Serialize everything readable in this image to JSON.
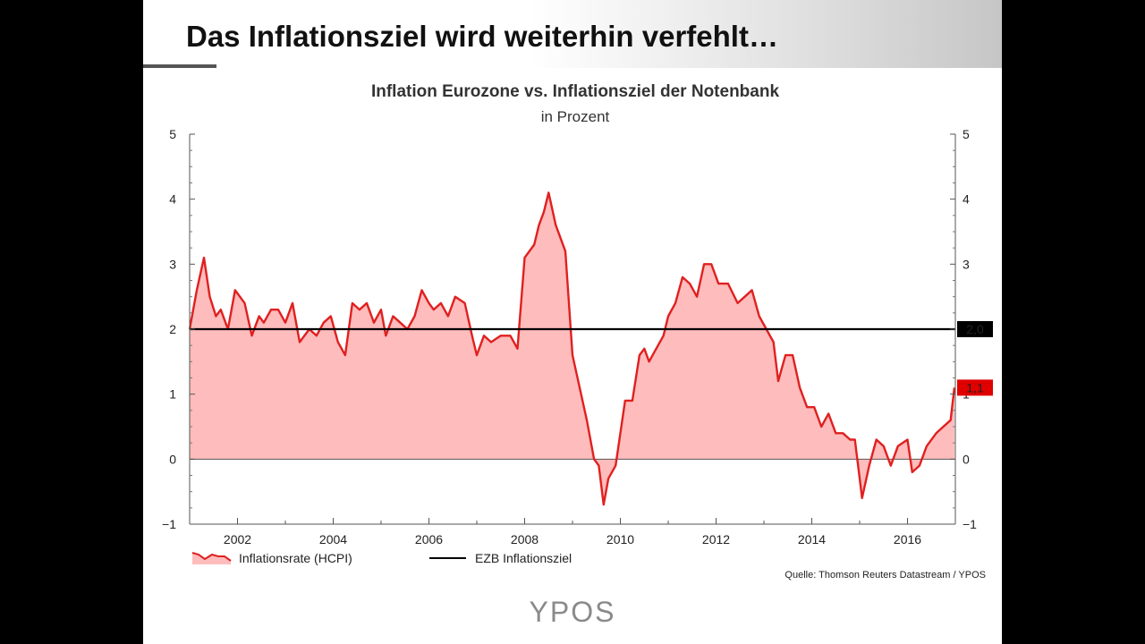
{
  "slide": {
    "title": "Das Inflationsziel wird weiterhin verfehlt…",
    "source": "Quelle: Thomson Reuters Datastream / YPOS",
    "logo": "YPOS"
  },
  "colors": {
    "line": "#e02020",
    "fill": "#ffbcbc",
    "target": "#000000",
    "badge_target": "#000000",
    "badge_current": "#e00000"
  },
  "chart_data": {
    "type": "area",
    "title": "Inflation Eurozone vs. Inflationsziel der Notenbank",
    "subtitle": "in Prozent",
    "x_ticks": [
      "2002",
      "2004",
      "2006",
      "2008",
      "2010",
      "2012",
      "2014",
      "2016"
    ],
    "y_ticks_left": [
      "5",
      "4",
      "3",
      "2",
      "1",
      "0",
      "−1"
    ],
    "y_ticks_right": [
      "5",
      "4",
      "3",
      "2",
      "1",
      "0",
      "−1"
    ],
    "xlim": [
      2001.0,
      2017.0
    ],
    "ylim": [
      -1,
      5
    ],
    "grid": false,
    "legend_position": "bottom-left",
    "series": [
      {
        "name": "Inflationsrate (HCPI)",
        "x": [
          2001.0,
          2001.15,
          2001.3,
          2001.42,
          2001.55,
          2001.65,
          2001.8,
          2001.95,
          2002.05,
          2002.15,
          2002.3,
          2002.45,
          2002.55,
          2002.7,
          2002.85,
          2003.0,
          2003.15,
          2003.3,
          2003.5,
          2003.65,
          2003.8,
          2003.95,
          2004.1,
          2004.25,
          2004.4,
          2004.55,
          2004.7,
          2004.85,
          2005.0,
          2005.1,
          2005.25,
          2005.4,
          2005.55,
          2005.7,
          2005.85,
          2006.0,
          2006.1,
          2006.25,
          2006.4,
          2006.55,
          2006.75,
          2006.9,
          2007.0,
          2007.15,
          2007.3,
          2007.5,
          2007.7,
          2007.85,
          2008.0,
          2008.2,
          2008.3,
          2008.4,
          2008.5,
          2008.65,
          2008.85,
          2009.0,
          2009.15,
          2009.3,
          2009.45,
          2009.55,
          2009.65,
          2009.75,
          2009.9,
          2010.1,
          2010.25,
          2010.4,
          2010.5,
          2010.6,
          2010.75,
          2010.9,
          2011.0,
          2011.15,
          2011.3,
          2011.45,
          2011.6,
          2011.75,
          2011.9,
          2012.05,
          2012.25,
          2012.45,
          2012.6,
          2012.75,
          2012.9,
          2013.05,
          2013.2,
          2013.3,
          2013.45,
          2013.6,
          2013.75,
          2013.9,
          2014.05,
          2014.2,
          2014.35,
          2014.5,
          2014.65,
          2014.8,
          2014.9,
          2015.05,
          2015.2,
          2015.35,
          2015.5,
          2015.65,
          2015.8,
          2016.0,
          2016.1,
          2016.25,
          2016.4,
          2016.6,
          2016.75,
          2016.9,
          2016.98
        ],
        "y": [
          2.0,
          2.6,
          3.1,
          2.5,
          2.2,
          2.3,
          2.0,
          2.6,
          2.5,
          2.4,
          1.9,
          2.2,
          2.1,
          2.3,
          2.3,
          2.1,
          2.4,
          1.8,
          2.0,
          1.9,
          2.1,
          2.2,
          1.8,
          1.6,
          2.4,
          2.3,
          2.4,
          2.1,
          2.3,
          1.9,
          2.2,
          2.1,
          2.0,
          2.2,
          2.6,
          2.4,
          2.3,
          2.4,
          2.2,
          2.5,
          2.4,
          1.9,
          1.6,
          1.9,
          1.8,
          1.9,
          1.9,
          1.7,
          3.1,
          3.3,
          3.6,
          3.8,
          4.1,
          3.6,
          3.2,
          1.6,
          1.1,
          0.6,
          0.0,
          -0.1,
          -0.7,
          -0.3,
          -0.1,
          0.9,
          0.9,
          1.6,
          1.7,
          1.5,
          1.7,
          1.9,
          2.2,
          2.4,
          2.8,
          2.7,
          2.5,
          3.0,
          3.0,
          2.7,
          2.7,
          2.4,
          2.5,
          2.6,
          2.2,
          2.0,
          1.8,
          1.2,
          1.6,
          1.6,
          1.1,
          0.8,
          0.8,
          0.5,
          0.7,
          0.4,
          0.4,
          0.3,
          0.3,
          -0.6,
          -0.1,
          0.3,
          0.2,
          -0.1,
          0.2,
          0.3,
          -0.2,
          -0.1,
          0.2,
          0.4,
          0.5,
          0.6,
          1.1
        ]
      },
      {
        "name": "EZB Inflationsziel",
        "value": 2.0
      }
    ],
    "badges": [
      {
        "label": "2,0",
        "value": 2.0
      },
      {
        "label": "1,1",
        "value": 1.1
      }
    ]
  }
}
